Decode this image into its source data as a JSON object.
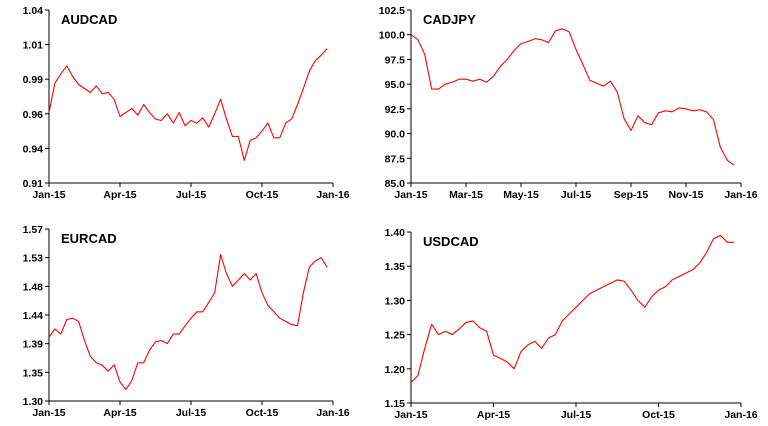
{
  "chart_data": [
    {
      "type": "line",
      "title": "AUDCAD",
      "y_ticks": [
        "0.91",
        "0.94",
        "0.96",
        "0.99",
        "1.01",
        "1.04"
      ],
      "x_ticks": [
        "Jan-15",
        "Apr-15",
        "Jul-15",
        "Oct-15",
        "Jan-16"
      ],
      "ylim": [
        0.91,
        1.04
      ],
      "xlim": [
        0,
        12
      ],
      "grid": false,
      "series": [
        {
          "color": "#ff0000",
          "x": [
            0,
            0.25,
            0.5,
            0.75,
            1,
            1.25,
            1.5,
            1.75,
            2,
            2.25,
            2.5,
            2.75,
            3,
            3.25,
            3.5,
            3.75,
            4,
            4.25,
            4.5,
            4.75,
            5,
            5.25,
            5.5,
            5.75,
            6,
            6.25,
            6.5,
            6.75,
            7,
            7.25,
            7.5,
            7.75,
            8,
            8.25,
            8.5,
            8.75,
            9,
            9.25,
            9.5,
            9.75,
            10,
            10.25,
            10.5,
            10.75,
            11,
            11.25,
            11.5,
            11.75
          ],
          "y": [
            0.963,
            0.985,
            0.992,
            0.998,
            0.99,
            0.984,
            0.981,
            0.978,
            0.983,
            0.977,
            0.978,
            0.973,
            0.96,
            0.963,
            0.966,
            0.961,
            0.969,
            0.963,
            0.958,
            0.957,
            0.962,
            0.955,
            0.963,
            0.953,
            0.957,
            0.955,
            0.959,
            0.952,
            0.962,
            0.973,
            0.958,
            0.945,
            0.945,
            0.927,
            0.942,
            0.944,
            0.949,
            0.955,
            0.944,
            0.944,
            0.955,
            0.958,
            0.969,
            0.981,
            0.994,
            1.002,
            1.006,
            1.011
          ]
        }
      ]
    },
    {
      "type": "line",
      "title": "CADJPY",
      "y_ticks": [
        "85.0",
        "87.5",
        "90.0",
        "92.5",
        "95.0",
        "97.5",
        "100.0",
        "102.5"
      ],
      "x_ticks": [
        "Jan-15",
        "Mar-15",
        "May-15",
        "Jul-15",
        "Sep-15",
        "Nov-15",
        "Jan-16"
      ],
      "ylim": [
        85,
        102.5
      ],
      "xlim": [
        0,
        12
      ],
      "grid": false,
      "series": [
        {
          "color": "#ff0000",
          "x": [
            0,
            0.25,
            0.5,
            0.75,
            1,
            1.25,
            1.5,
            1.75,
            2,
            2.25,
            2.5,
            2.75,
            3,
            3.25,
            3.5,
            3.75,
            4,
            4.25,
            4.5,
            4.75,
            5,
            5.25,
            5.5,
            5.75,
            6,
            6.25,
            6.5,
            6.75,
            7,
            7.25,
            7.5,
            7.75,
            8,
            8.25,
            8.5,
            8.75,
            9,
            9.25,
            9.5,
            9.75,
            10,
            10.25,
            10.5,
            10.75,
            11,
            11.25,
            11.5,
            11.75
          ],
          "y": [
            100,
            99.5,
            98,
            94.5,
            94.5,
            95,
            95.2,
            95.5,
            95.5,
            95.3,
            95.5,
            95.2,
            95.8,
            96.8,
            97.5,
            98.4,
            99.1,
            99.3,
            99.6,
            99.5,
            99.2,
            100.4,
            100.6,
            100.3,
            98.5,
            97,
            95.4,
            95.1,
            94.8,
            95.3,
            94.2,
            91.5,
            90.3,
            91.8,
            91.1,
            90.9,
            92.1,
            92.3,
            92.2,
            92.6,
            92.5,
            92.3,
            92.4,
            92.2,
            91.4,
            88.6,
            87.3,
            86.8
          ]
        }
      ]
    },
    {
      "type": "line",
      "title": "EURCAD",
      "y_ticks": [
        "1.30",
        "1.35",
        "1.39",
        "1.44",
        "1.48",
        "1.53",
        "1.57"
      ],
      "x_ticks": [
        "Jan-15",
        "Apr-15",
        "Jul-15",
        "Oct-15",
        "Jan-16"
      ],
      "ylim": [
        1.3,
        1.57
      ],
      "xlim": [
        0,
        12
      ],
      "grid": false,
      "series": [
        {
          "color": "#ff0000",
          "x": [
            0,
            0.25,
            0.5,
            0.75,
            1,
            1.25,
            1.5,
            1.75,
            2,
            2.25,
            2.5,
            2.75,
            3,
            3.25,
            3.5,
            3.75,
            4,
            4.25,
            4.5,
            4.75,
            5,
            5.25,
            5.5,
            5.75,
            6,
            6.25,
            6.5,
            6.75,
            7,
            7.25,
            7.5,
            7.75,
            8,
            8.25,
            8.5,
            8.75,
            9,
            9.25,
            9.5,
            9.75,
            10,
            10.25,
            10.5,
            10.75,
            11,
            11.25,
            11.5,
            11.75
          ],
          "y": [
            1.4,
            1.413,
            1.405,
            1.428,
            1.43,
            1.425,
            1.395,
            1.37,
            1.36,
            1.356,
            1.347,
            1.357,
            1.33,
            1.318,
            1.332,
            1.36,
            1.36,
            1.38,
            1.393,
            1.395,
            1.39,
            1.405,
            1.405,
            1.418,
            1.43,
            1.44,
            1.44,
            1.455,
            1.47,
            1.53,
            1.5,
            1.48,
            1.49,
            1.5,
            1.49,
            1.5,
            1.47,
            1.45,
            1.44,
            1.43,
            1.425,
            1.42,
            1.418,
            1.47,
            1.51,
            1.52,
            1.525,
            1.51
          ]
        }
      ]
    },
    {
      "type": "line",
      "title": "USDCAD",
      "y_ticks": [
        "1.15",
        "1.20",
        "1.25",
        "1.30",
        "1.35",
        "1.40"
      ],
      "x_ticks": [
        "Jan-15",
        "Apr-15",
        "Jul-15",
        "Oct-15",
        "Jan-16"
      ],
      "ylim": [
        1.15,
        1.4
      ],
      "xlim": [
        0,
        12
      ],
      "grid": false,
      "series": [
        {
          "color": "#ff0000",
          "x": [
            0,
            0.25,
            0.5,
            0.75,
            1,
            1.25,
            1.5,
            1.75,
            2,
            2.25,
            2.5,
            2.75,
            3,
            3.25,
            3.5,
            3.75,
            4,
            4.25,
            4.5,
            4.75,
            5,
            5.25,
            5.5,
            5.75,
            6,
            6.25,
            6.5,
            6.75,
            7,
            7.25,
            7.5,
            7.75,
            8,
            8.25,
            8.5,
            8.75,
            9,
            9.25,
            9.5,
            9.75,
            10,
            10.25,
            10.5,
            10.75,
            11,
            11.25,
            11.5,
            11.75
          ],
          "y": [
            1.18,
            1.19,
            1.23,
            1.265,
            1.25,
            1.255,
            1.25,
            1.258,
            1.268,
            1.27,
            1.26,
            1.255,
            1.22,
            1.215,
            1.21,
            1.2,
            1.225,
            1.235,
            1.24,
            1.23,
            1.245,
            1.25,
            1.27,
            1.28,
            1.29,
            1.3,
            1.31,
            1.315,
            1.32,
            1.325,
            1.33,
            1.328,
            1.315,
            1.3,
            1.29,
            1.305,
            1.315,
            1.32,
            1.33,
            1.335,
            1.34,
            1.345,
            1.355,
            1.37,
            1.39,
            1.395,
            1.385,
            1.385
          ]
        }
      ]
    }
  ]
}
